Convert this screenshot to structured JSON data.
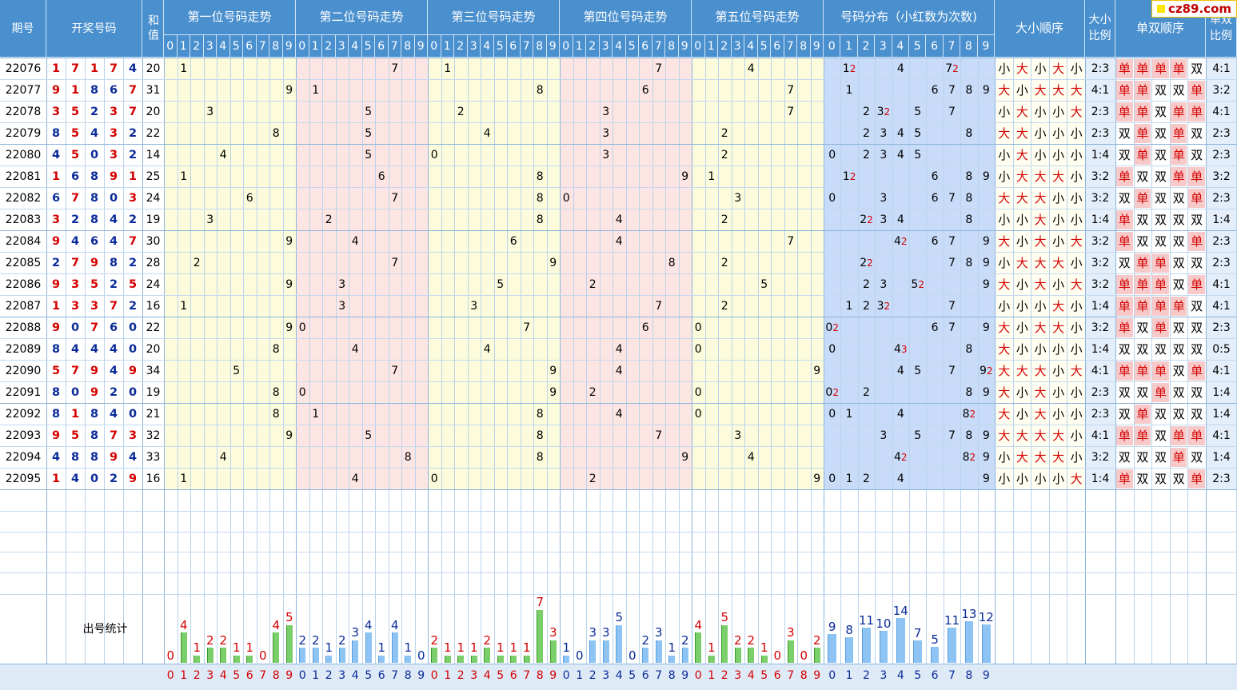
{
  "watermark": "cz89.com",
  "header": {
    "issue": "期号",
    "draw": "开奖号码",
    "sum": "和值",
    "pos": [
      "第一位号码走势",
      "第二位号码走势",
      "第三位号码走势",
      "第四位号码走势",
      "第五位号码走势"
    ],
    "dist": "号码分布（小红数为次数)",
    "bs_order": "大小顺序",
    "bs_ratio": "大小比例",
    "oe_order": "单双顺序",
    "oe_ratio": "单双比例",
    "digits": [
      "0",
      "1",
      "2",
      "3",
      "4",
      "5",
      "6",
      "7",
      "8",
      "9"
    ]
  },
  "labels": {
    "big": "大",
    "small": "小",
    "odd": "单",
    "even": "双"
  },
  "stats_title": "出号统计",
  "chart_data": {
    "type": "table",
    "rows": [
      {
        "issue": "22076",
        "draw": [
          1,
          7,
          1,
          7,
          4
        ],
        "sum": 20,
        "dist": [
          [
            1,
            2
          ],
          [
            4,
            1
          ],
          [
            7,
            2
          ]
        ],
        "bs": "小大小大小",
        "bs_ratio": "2:3",
        "oe": "单单单单双",
        "oe_ratio": "4:1"
      },
      {
        "issue": "22077",
        "draw": [
          9,
          1,
          8,
          6,
          7
        ],
        "sum": 31,
        "dist": [
          [
            1,
            1
          ],
          [
            6,
            1
          ],
          [
            7,
            1
          ],
          [
            8,
            1
          ],
          [
            9,
            1
          ]
        ],
        "bs": "大小大大大",
        "bs_ratio": "4:1",
        "oe": "单单双双单",
        "oe_ratio": "3:2"
      },
      {
        "issue": "22078",
        "draw": [
          3,
          5,
          2,
          3,
          7
        ],
        "sum": 20,
        "dist": [
          [
            2,
            1
          ],
          [
            3,
            2
          ],
          [
            5,
            1
          ],
          [
            7,
            1
          ]
        ],
        "bs": "小大小小大",
        "bs_ratio": "2:3",
        "oe": "单单双单单",
        "oe_ratio": "4:1"
      },
      {
        "issue": "22079",
        "draw": [
          8,
          5,
          4,
          3,
          2
        ],
        "sum": 22,
        "dist": [
          [
            2,
            1
          ],
          [
            3,
            1
          ],
          [
            4,
            1
          ],
          [
            5,
            1
          ],
          [
            8,
            1
          ]
        ],
        "bs": "大大小小小",
        "bs_ratio": "2:3",
        "oe": "双单双单双",
        "oe_ratio": "2:3"
      },
      {
        "issue": "22080",
        "draw": [
          4,
          5,
          0,
          3,
          2
        ],
        "sum": 14,
        "dist": [
          [
            0,
            1
          ],
          [
            2,
            1
          ],
          [
            3,
            1
          ],
          [
            4,
            1
          ],
          [
            5,
            1
          ]
        ],
        "bs": "小大小小小",
        "bs_ratio": "1:4",
        "oe": "双单双单双",
        "oe_ratio": "2:3"
      },
      {
        "issue": "22081",
        "draw": [
          1,
          6,
          8,
          9,
          1
        ],
        "sum": 25,
        "dist": [
          [
            1,
            2
          ],
          [
            6,
            1
          ],
          [
            8,
            1
          ],
          [
            9,
            1
          ]
        ],
        "bs": "小大大大小",
        "bs_ratio": "3:2",
        "oe": "单双双单单",
        "oe_ratio": "3:2"
      },
      {
        "issue": "22082",
        "draw": [
          6,
          7,
          8,
          0,
          3
        ],
        "sum": 24,
        "dist": [
          [
            0,
            1
          ],
          [
            3,
            1
          ],
          [
            6,
            1
          ],
          [
            7,
            1
          ],
          [
            8,
            1
          ]
        ],
        "bs": "大大大小小",
        "bs_ratio": "3:2",
        "oe": "双单双双单",
        "oe_ratio": "2:3"
      },
      {
        "issue": "22083",
        "draw": [
          3,
          2,
          8,
          4,
          2
        ],
        "sum": 19,
        "dist": [
          [
            2,
            2
          ],
          [
            3,
            1
          ],
          [
            4,
            1
          ],
          [
            8,
            1
          ]
        ],
        "bs": "小小大小小",
        "bs_ratio": "1:4",
        "oe": "单双双双双",
        "oe_ratio": "1:4"
      },
      {
        "issue": "22084",
        "draw": [
          9,
          4,
          6,
          4,
          7
        ],
        "sum": 30,
        "dist": [
          [
            4,
            2
          ],
          [
            6,
            1
          ],
          [
            7,
            1
          ],
          [
            9,
            1
          ]
        ],
        "bs": "大小大小大",
        "bs_ratio": "3:2",
        "oe": "单双双双单",
        "oe_ratio": "2:3"
      },
      {
        "issue": "22085",
        "draw": [
          2,
          7,
          9,
          8,
          2
        ],
        "sum": 28,
        "dist": [
          [
            2,
            2
          ],
          [
            7,
            1
          ],
          [
            8,
            1
          ],
          [
            9,
            1
          ]
        ],
        "bs": "小大大大小",
        "bs_ratio": "3:2",
        "oe": "双单单双双",
        "oe_ratio": "2:3"
      },
      {
        "issue": "22086",
        "draw": [
          9,
          3,
          5,
          2,
          5
        ],
        "sum": 24,
        "dist": [
          [
            2,
            1
          ],
          [
            3,
            1
          ],
          [
            5,
            2
          ],
          [
            9,
            1
          ]
        ],
        "bs": "大小大小大",
        "bs_ratio": "3:2",
        "oe": "单单单双单",
        "oe_ratio": "4:1"
      },
      {
        "issue": "22087",
        "draw": [
          1,
          3,
          3,
          7,
          2
        ],
        "sum": 16,
        "dist": [
          [
            1,
            1
          ],
          [
            2,
            1
          ],
          [
            3,
            2
          ],
          [
            7,
            1
          ]
        ],
        "bs": "小小小大小",
        "bs_ratio": "1:4",
        "oe": "单单单单双",
        "oe_ratio": "4:1"
      },
      {
        "issue": "22088",
        "draw": [
          9,
          0,
          7,
          6,
          0
        ],
        "sum": 22,
        "dist": [
          [
            0,
            2
          ],
          [
            6,
            1
          ],
          [
            7,
            1
          ],
          [
            9,
            1
          ]
        ],
        "bs": "大小大大小",
        "bs_ratio": "3:2",
        "oe": "单双单双双",
        "oe_ratio": "2:3"
      },
      {
        "issue": "22089",
        "draw": [
          8,
          4,
          4,
          4,
          0
        ],
        "sum": 20,
        "dist": [
          [
            0,
            1
          ],
          [
            4,
            3
          ],
          [
            8,
            1
          ]
        ],
        "bs": "大小小小小",
        "bs_ratio": "1:4",
        "oe": "双双双双双",
        "oe_ratio": "0:5"
      },
      {
        "issue": "22090",
        "draw": [
          5,
          7,
          9,
          4,
          9
        ],
        "sum": 34,
        "dist": [
          [
            4,
            1
          ],
          [
            5,
            1
          ],
          [
            7,
            1
          ],
          [
            9,
            2
          ]
        ],
        "bs": "大大大小大",
        "bs_ratio": "4:1",
        "oe": "单单单双单",
        "oe_ratio": "4:1"
      },
      {
        "issue": "22091",
        "draw": [
          8,
          0,
          9,
          2,
          0
        ],
        "sum": 19,
        "dist": [
          [
            0,
            2
          ],
          [
            2,
            1
          ],
          [
            8,
            1
          ],
          [
            9,
            1
          ]
        ],
        "bs": "大小大小小",
        "bs_ratio": "2:3",
        "oe": "双双单双双",
        "oe_ratio": "1:4"
      },
      {
        "issue": "22092",
        "draw": [
          8,
          1,
          8,
          4,
          0
        ],
        "sum": 21,
        "dist": [
          [
            0,
            1
          ],
          [
            1,
            1
          ],
          [
            4,
            1
          ],
          [
            8,
            2
          ]
        ],
        "bs": "大小大小小",
        "bs_ratio": "2:3",
        "oe": "双单双双双",
        "oe_ratio": "1:4"
      },
      {
        "issue": "22093",
        "draw": [
          9,
          5,
          8,
          7,
          3
        ],
        "sum": 32,
        "dist": [
          [
            3,
            1
          ],
          [
            5,
            1
          ],
          [
            7,
            1
          ],
          [
            8,
            1
          ],
          [
            9,
            1
          ]
        ],
        "bs": "大大大大小",
        "bs_ratio": "4:1",
        "oe": "单单双单单",
        "oe_ratio": "4:1"
      },
      {
        "issue": "22094",
        "draw": [
          4,
          8,
          8,
          9,
          4
        ],
        "sum": 33,
        "dist": [
          [
            4,
            2
          ],
          [
            8,
            2
          ],
          [
            9,
            1
          ]
        ],
        "bs": "小大大大小",
        "bs_ratio": "3:2",
        "oe": "双双双单双",
        "oe_ratio": "1:4"
      },
      {
        "issue": "22095",
        "draw": [
          1,
          4,
          0,
          2,
          9
        ],
        "sum": 16,
        "dist": [
          [
            0,
            1
          ],
          [
            1,
            1
          ],
          [
            2,
            1
          ],
          [
            4,
            1
          ],
          [
            9,
            1
          ]
        ],
        "bs": "小小小小大",
        "bs_ratio": "1:4",
        "oe": "单双双双单",
        "oe_ratio": "2:3"
      }
    ],
    "stats": {
      "pos1": [
        0,
        4,
        1,
        2,
        2,
        1,
        1,
        0,
        4,
        5
      ],
      "pos2": [
        2,
        2,
        1,
        2,
        3,
        4,
        1,
        4,
        1,
        0
      ],
      "pos3": [
        2,
        1,
        1,
        1,
        2,
        1,
        1,
        1,
        7,
        3
      ],
      "pos4": [
        1,
        0,
        3,
        3,
        5,
        0,
        2,
        3,
        1,
        2
      ],
      "pos5": [
        4,
        1,
        5,
        2,
        2,
        1,
        0,
        3,
        0,
        2
      ],
      "dist": [
        9,
        8,
        11,
        10,
        14,
        7,
        5,
        11,
        13,
        12
      ]
    }
  }
}
